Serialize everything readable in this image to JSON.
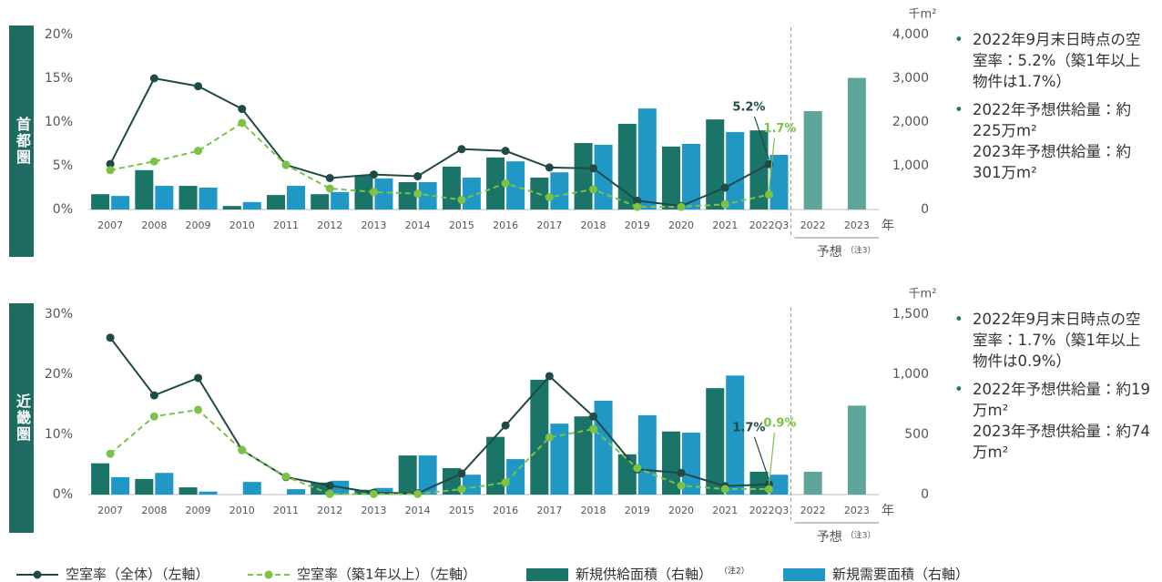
{
  "chart_data": [
    {
      "type": "bar-line",
      "region": "首都圏",
      "categories": [
        "2007",
        "2008",
        "2009",
        "2010",
        "2011",
        "2012",
        "2013",
        "2014",
        "2015",
        "2016",
        "2017",
        "2018",
        "2019",
        "2020",
        "2021",
        "2022Q3",
        "2022",
        "2023"
      ],
      "xlabel": "年",
      "ylim": [
        0,
        20
      ],
      "yticks": [
        {
          "value": 0,
          "label": "0%"
        },
        {
          "value": 5,
          "label": "5%"
        },
        {
          "value": 10,
          "label": "10%"
        },
        {
          "value": 15,
          "label": "15%"
        },
        {
          "value": 20,
          "label": "20%"
        }
      ],
      "y2label": "千m²",
      "y2lim": [
        0,
        4000
      ],
      "y2ticks": [
        0,
        {
          "value": 1000,
          "label": "1,000"
        },
        {
          "value": 2000,
          "label": "2,000"
        },
        {
          "value": 3000,
          "label": "3,000"
        },
        {
          "value": 4000,
          "label": "4,000"
        }
      ],
      "series": [
        {
          "name": "空室率（全体）（左軸）",
          "type": "line",
          "style": "solid",
          "color": "#1f4a47",
          "values": [
            5.2,
            15.0,
            14.1,
            11.5,
            5.1,
            3.6,
            4.0,
            3.8,
            6.9,
            6.7,
            4.8,
            4.7,
            1.0,
            0.4,
            2.5,
            5.2,
            null,
            null
          ],
          "value_labels": [
            null,
            null,
            null,
            null,
            null,
            null,
            null,
            null,
            null,
            null,
            null,
            null,
            null,
            null,
            null,
            "5.2%",
            null,
            null
          ]
        },
        {
          "name": "空室率（築1年以上）（左軸）",
          "type": "line",
          "style": "dashed",
          "color": "#7cc243",
          "values": [
            4.5,
            5.5,
            6.7,
            9.9,
            5.1,
            2.4,
            2.0,
            1.8,
            1.1,
            3.0,
            1.4,
            2.3,
            0.3,
            0.3,
            0.6,
            1.7,
            null,
            null
          ],
          "value_labels": [
            null,
            null,
            null,
            null,
            null,
            null,
            null,
            null,
            null,
            null,
            null,
            null,
            null,
            null,
            null,
            "1.7%",
            null,
            null
          ]
        },
        {
          "name": "新規供給面積（右軸）",
          "note": "（注2）",
          "type": "bar",
          "axis": "y2",
          "color": "#1b7468",
          "values": [
            350,
            900,
            540,
            80,
            330,
            350,
            770,
            625,
            980,
            1190,
            730,
            1520,
            1960,
            1440,
            2060,
            1810,
            2250,
            3010
          ]
        },
        {
          "name": "新規需要面積（右軸）",
          "type": "bar",
          "axis": "y2",
          "color": "#1f98c6",
          "values": [
            310,
            540,
            500,
            170,
            540,
            400,
            710,
            625,
            730,
            1100,
            850,
            1480,
            2310,
            1500,
            1770,
            1250,
            null,
            null
          ]
        }
      ],
      "forecast_label": "予想",
      "forecast_note": "（注3）",
      "forecast_color": "#5ea59c",
      "notes": [
        [
          "2022年9月末日時点の空室率：5.2%（築1年以上物件は1.7%）"
        ],
        [
          "2022年予想供給量：約225万m²",
          "2023年予想供給量：約301万m²"
        ]
      ]
    },
    {
      "type": "bar-line",
      "region": "近畿圏",
      "categories": [
        "2007",
        "2008",
        "2009",
        "2010",
        "2011",
        "2012",
        "2013",
        "2014",
        "2015",
        "2016",
        "2017",
        "2018",
        "2019",
        "2020",
        "2021",
        "2022Q3",
        "2022",
        "2023"
      ],
      "xlabel": "年",
      "ylim": [
        0,
        30
      ],
      "yticks": [
        {
          "value": 0,
          "label": "0%"
        },
        {
          "value": 10,
          "label": "10%"
        },
        {
          "value": 20,
          "label": "20%"
        },
        {
          "value": 30,
          "label": "30%"
        }
      ],
      "y2label": "千m²",
      "y2lim": [
        0,
        1500
      ],
      "y2ticks": [
        0,
        500,
        {
          "value": 1000,
          "label": "1,000"
        },
        {
          "value": 1500,
          "label": "1,500"
        }
      ],
      "series": [
        {
          "type": "line",
          "style": "solid",
          "color": "#1f4a47",
          "values": [
            26.1,
            16.5,
            19.4,
            7.4,
            2.9,
            1.5,
            0.3,
            0.2,
            3.5,
            11.5,
            19.7,
            13.0,
            4.2,
            3.6,
            1.4,
            1.7,
            null,
            null
          ],
          "value_labels": [
            null,
            null,
            null,
            null,
            null,
            null,
            null,
            null,
            null,
            null,
            null,
            null,
            null,
            null,
            null,
            "1.7%",
            null,
            null
          ]
        },
        {
          "type": "line",
          "style": "dashed",
          "color": "#7cc243",
          "values": [
            6.8,
            13.0,
            14.1,
            7.4,
            3.0,
            0.1,
            0.1,
            0.1,
            0.9,
            2.0,
            9.5,
            10.9,
            4.4,
            1.5,
            0.9,
            0.9,
            null,
            null
          ],
          "value_labels": [
            null,
            null,
            null,
            null,
            null,
            null,
            null,
            null,
            null,
            null,
            null,
            null,
            null,
            null,
            null,
            "0.9%",
            null,
            null
          ]
        },
        {
          "type": "bar",
          "axis": "y2",
          "color": "#1b7468",
          "values": [
            260,
            130,
            60,
            0,
            0,
            100,
            40,
            325,
            220,
            480,
            955,
            650,
            335,
            525,
            885,
            190,
            190,
            740
          ]
        },
        {
          "type": "bar",
          "axis": "y2",
          "color": "#1f98c6",
          "values": [
            145,
            180,
            25,
            105,
            45,
            115,
            55,
            325,
            165,
            295,
            590,
            780,
            660,
            515,
            990,
            165,
            null,
            null
          ]
        }
      ],
      "forecast_label": "予想",
      "forecast_note": "（注3）",
      "forecast_color": "#5ea59c",
      "notes": [
        [
          "2022年9月末日時点の空室率：1.7%（築1年以上物件は0.9%）"
        ],
        [
          "2022年予想供給量：約19万m²",
          "2023年予想供給量：約74万m²"
        ]
      ]
    }
  ]
}
